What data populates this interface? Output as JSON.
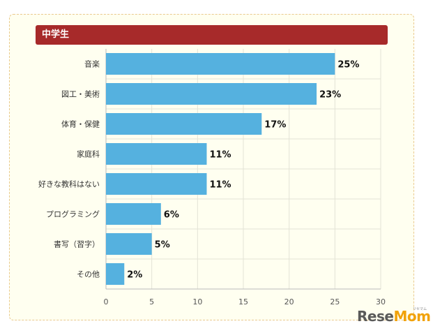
{
  "header": {
    "title": "中学生",
    "color": "#a72a2a"
  },
  "colors": {
    "bar": "#55b1df",
    "panel_bg": "#fffff0",
    "grid": "#e3e3d6"
  },
  "chart_data": {
    "type": "bar",
    "orientation": "horizontal",
    "title": "中学生",
    "categories": [
      "音楽",
      "図工・美術",
      "体育・保健",
      "家庭科",
      "好きな教科はない",
      "プログラミング",
      "書写（習字）",
      "その他"
    ],
    "values": [
      25,
      23,
      17,
      11,
      11,
      6,
      5,
      2
    ],
    "value_labels": [
      "25%",
      "23%",
      "17%",
      "11%",
      "11%",
      "6%",
      "5%",
      "2%"
    ],
    "xlim": [
      0,
      30
    ],
    "xticks": [
      0,
      5,
      10,
      15,
      20,
      25,
      30
    ],
    "grid": true,
    "legend": "none"
  },
  "watermark": {
    "logo_main": "Rese",
    "logo_accent": "Mom",
    "logo_sub": "リセマム"
  }
}
